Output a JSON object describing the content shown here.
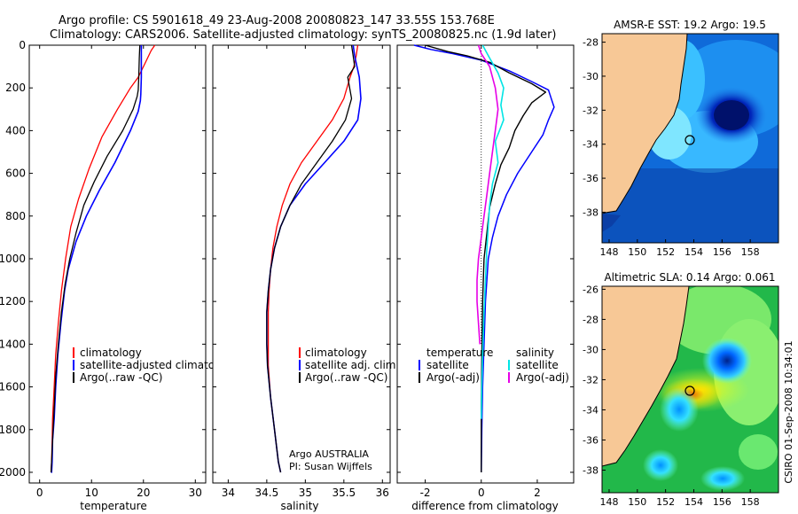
{
  "header": {
    "line1": "Argo profile: CS 5901618_49 23-Aug-2008 20080823_147 33.55S 153.768E",
    "line2": "Climatology: CARS2006. Satellite-adjusted climatology: synTS_20080825.nc (1.9d later)"
  },
  "colors": {
    "climatology": "#ff0000",
    "satellite": "#0000ff",
    "argo": "#000000",
    "sal_sat": "#00e5e5",
    "sal_argo": "#e600e6",
    "land": "#f7c896"
  },
  "chart_data": [
    {
      "type": "line",
      "id": "temperature",
      "xlabel": "temperature",
      "ylabel": "",
      "xlim": [
        -2,
        32
      ],
      "ylim": [
        2050,
        0
      ],
      "xticks": [
        0,
        10,
        20,
        30
      ],
      "yticks": [
        0,
        200,
        400,
        600,
        800,
        1000,
        1200,
        1400,
        1600,
        1800,
        2000
      ],
      "legend": [
        "climatology",
        "satellite-adjusted climatology",
        "Argo(..raw -QC)"
      ],
      "series": [
        {
          "name": "climatology",
          "color": "#ff0000",
          "width": 1.3,
          "x": [
            22.2,
            21.5,
            20.5,
            19.0,
            17.5,
            15.0,
            12.0,
            9.5,
            7.5,
            6.0,
            5.0,
            4.2,
            3.6,
            3.1,
            2.8,
            2.5,
            2.4,
            2.3,
            2.2
          ],
          "y": [
            0,
            25,
            75,
            150,
            200,
            300,
            430,
            580,
            720,
            850,
            1000,
            1150,
            1300,
            1450,
            1600,
            1750,
            1850,
            1950,
            2000
          ]
        },
        {
          "name": "satellite-adjusted climatology",
          "color": "#0000ff",
          "width": 1.6,
          "x": [
            19.6,
            19.6,
            19.6,
            19.5,
            19.4,
            19.0,
            17.5,
            14.5,
            11.5,
            9.0,
            7.0,
            5.5,
            4.8,
            4.1,
            3.5,
            3.1,
            2.8,
            2.5,
            2.4,
            2.3,
            2.2
          ],
          "y": [
            0,
            50,
            150,
            230,
            260,
            310,
            400,
            550,
            680,
            800,
            920,
            1050,
            1150,
            1300,
            1450,
            1600,
            1750,
            1850,
            1950,
            2000,
            2000
          ]
        },
        {
          "name": "Argo(..raw -QC)",
          "color": "#000000",
          "width": 1.3,
          "x": [
            19.3,
            19.2,
            19.1,
            19.0,
            18.8,
            18.0,
            16.0,
            13.0,
            10.5,
            8.5,
            7.0,
            5.8,
            4.9,
            4.2,
            3.6,
            3.1,
            2.8,
            2.5,
            2.3,
            2.2
          ],
          "y": [
            0,
            60,
            150,
            210,
            240,
            300,
            400,
            520,
            640,
            750,
            880,
            1000,
            1120,
            1250,
            1400,
            1550,
            1700,
            1850,
            1950,
            2000
          ]
        }
      ]
    },
    {
      "type": "line",
      "id": "salinity",
      "xlabel": "salinity",
      "xlim": [
        33.8,
        36.1
      ],
      "ylim": [
        2050,
        0
      ],
      "xticks": [
        34,
        34.5,
        35,
        35.5,
        36
      ],
      "xticklabels": [
        "34",
        "34.5",
        "35",
        "35.5",
        "36"
      ],
      "legend": [
        "climatology",
        "satellite adj. clim.",
        "Argo(..raw -QC)"
      ],
      "annotations": [
        "Argo AUSTRALIA",
        "PI: Susan Wijffels"
      ],
      "series": [
        {
          "name": "climatology",
          "color": "#ff0000",
          "width": 1.3,
          "x": [
            35.68,
            35.66,
            35.63,
            35.58,
            35.5,
            35.35,
            35.15,
            34.95,
            34.8,
            34.7,
            34.63,
            34.58,
            34.55,
            34.53,
            34.52,
            34.52,
            34.52,
            34.55,
            34.6,
            34.65,
            34.68
          ],
          "y": [
            0,
            50,
            100,
            150,
            250,
            350,
            450,
            550,
            650,
            750,
            850,
            950,
            1050,
            1150,
            1250,
            1400,
            1500,
            1650,
            1800,
            1950,
            2000
          ]
        },
        {
          "name": "satellite adj. clim.",
          "color": "#0000ff",
          "width": 1.6,
          "x": [
            35.62,
            35.64,
            35.67,
            35.7,
            35.72,
            35.68,
            35.5,
            35.25,
            35.0,
            34.8,
            34.68,
            34.6,
            34.55,
            34.52,
            34.5,
            34.5,
            34.51,
            34.55,
            34.6,
            34.65,
            34.68
          ],
          "y": [
            0,
            50,
            100,
            150,
            250,
            350,
            450,
            550,
            650,
            750,
            850,
            950,
            1050,
            1150,
            1250,
            1400,
            1500,
            1650,
            1800,
            1950,
            2000
          ]
        },
        {
          "name": "Argo(..raw -QC)",
          "color": "#000000",
          "width": 1.3,
          "x": [
            35.6,
            35.62,
            35.64,
            35.55,
            35.6,
            35.52,
            35.35,
            35.15,
            34.95,
            34.8,
            34.68,
            34.6,
            34.55,
            34.52,
            34.5,
            34.5,
            34.51,
            34.55,
            34.6,
            34.65,
            34.68
          ],
          "y": [
            0,
            50,
            100,
            150,
            250,
            350,
            450,
            550,
            650,
            750,
            850,
            950,
            1050,
            1150,
            1250,
            1400,
            1500,
            1650,
            1800,
            1950,
            2000
          ]
        }
      ]
    },
    {
      "type": "line",
      "id": "difference",
      "xlabel": "difference from climatology",
      "xlim": [
        -3,
        3.3
      ],
      "ylim": [
        2050,
        0
      ],
      "xticks": [
        -2,
        0,
        2
      ],
      "legend_left_title": "temperature",
      "legend_left": [
        "satellite",
        "Argo(-adj)"
      ],
      "legend_right_title": "salinity",
      "legend_right": [
        "satellite",
        "Argo(-adj)"
      ],
      "series": [
        {
          "name": "temperature satellite",
          "color": "#0000ff",
          "width": 1.5,
          "x": [
            -2.4,
            -1.8,
            -1.0,
            0.0,
            1.0,
            1.8,
            2.4,
            2.5,
            2.6,
            2.4,
            2.2,
            1.8,
            1.3,
            0.9,
            0.6,
            0.4,
            0.25,
            0.15,
            0.1,
            0.05,
            0.02,
            0.0
          ],
          "y": [
            0,
            20,
            40,
            70,
            120,
            170,
            210,
            250,
            290,
            350,
            420,
            500,
            600,
            700,
            800,
            900,
            1000,
            1200,
            1400,
            1600,
            1800,
            2000
          ]
        },
        {
          "name": "temperature Argo(-adj)",
          "color": "#000000",
          "width": 1.4,
          "x": [
            -2.0,
            -1.2,
            -0.5,
            0.3,
            1.0,
            1.8,
            2.3,
            1.8,
            1.5,
            1.2,
            1.0,
            0.7,
            0.5,
            0.3,
            0.2,
            0.1,
            0.05,
            0.02,
            0.0,
            0.0
          ],
          "y": [
            0,
            30,
            50,
            80,
            130,
            180,
            220,
            270,
            330,
            400,
            480,
            560,
            650,
            760,
            880,
            1000,
            1200,
            1450,
            1700,
            2000
          ]
        },
        {
          "name": "salinity satellite",
          "color": "#00e5e5",
          "width": 1.6,
          "x": [
            0.05,
            0.3,
            0.6,
            0.8,
            0.7,
            0.8,
            0.5,
            0.6,
            0.4,
            0.3,
            0.25,
            0.2,
            0.15,
            0.1,
            0.05,
            0.02,
            0.0
          ],
          "y": [
            0,
            60,
            130,
            200,
            280,
            350,
            450,
            550,
            650,
            750,
            850,
            950,
            1100,
            1250,
            1450,
            1600,
            1750
          ]
        },
        {
          "name": "salinity Argo(-adj)",
          "color": "#e600e6",
          "width": 1.6,
          "x": [
            -0.1,
            0.0,
            0.3,
            0.5,
            0.6,
            0.5,
            0.4,
            0.3,
            0.2,
            0.1,
            0.0,
            -0.1,
            -0.15,
            -0.15,
            -0.1,
            -0.05
          ],
          "y": [
            0,
            40,
            100,
            200,
            300,
            400,
            500,
            600,
            700,
            800,
            900,
            1000,
            1100,
            1200,
            1300,
            1400
          ]
        }
      ]
    },
    {
      "type": "heatmap",
      "id": "sst_map",
      "title": "AMSR-E SST: 19.2 Argo: 19.5",
      "xlim": [
        147.5,
        160
      ],
      "ylim": [
        -39.8,
        -27.5
      ],
      "xticks": [
        148,
        150,
        152,
        154,
        156,
        158
      ],
      "yticks": [
        -28,
        -30,
        -32,
        -34,
        -36,
        -38
      ],
      "float_position": {
        "lon": 153.768,
        "lat": -33.55
      }
    },
    {
      "type": "heatmap",
      "id": "sla_map",
      "title": "Altimetric SLA: 0.14 Argo: 0.061",
      "xlim": [
        147.5,
        160
      ],
      "ylim": [
        -39.5,
        -25.8
      ],
      "xticks": [
        148,
        150,
        152,
        154,
        156,
        158
      ],
      "yticks": [
        -26,
        -28,
        -30,
        -32,
        -34,
        -36,
        -38
      ],
      "float_position": {
        "lon": 153.768,
        "lat": -33.55
      }
    }
  ],
  "side_label": "CSIRO 01-Sep-2008 10:34:01"
}
